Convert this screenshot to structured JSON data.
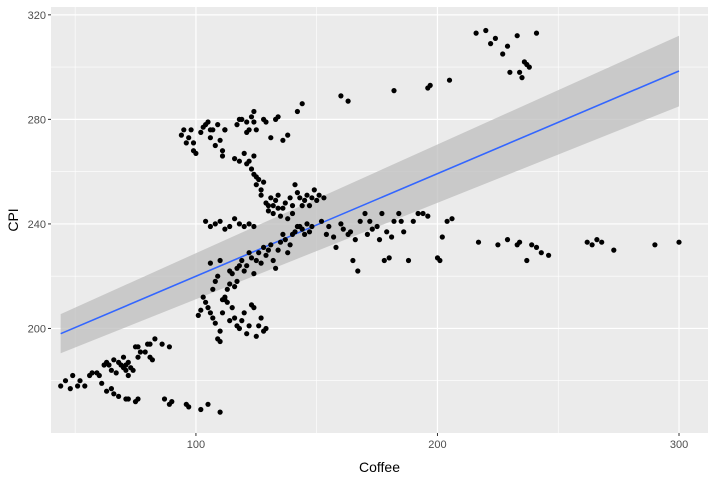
{
  "chart_data": {
    "type": "scatter",
    "title": "",
    "xlabel": "Coffee",
    "ylabel": "CPI",
    "xlim": [
      40,
      312
    ],
    "ylim": [
      160,
      323
    ],
    "x_ticks": [
      100,
      200,
      300
    ],
    "y_ticks": [
      200,
      240,
      280,
      320
    ],
    "x_minor_ticks": [
      50,
      150,
      250
    ],
    "y_minor_ticks": [
      180,
      220,
      260,
      300
    ],
    "grid": true,
    "legend": "none",
    "colors": {
      "panel": "#ebebeb",
      "grid": "#ffffff",
      "point": "#000000",
      "trend": "#3366ff",
      "ribbon": "#bdbdbd"
    },
    "trend": {
      "type": "linear",
      "x": [
        44,
        300
      ],
      "y": [
        198,
        298.5
      ],
      "ci_lower": [
        190.5,
        285
      ],
      "ci_upper": [
        205.5,
        312
      ]
    },
    "points": [
      [
        44,
        178
      ],
      [
        46,
        180
      ],
      [
        48,
        177
      ],
      [
        49,
        182
      ],
      [
        51,
        178
      ],
      [
        52,
        180
      ],
      [
        54,
        178
      ],
      [
        56,
        182
      ],
      [
        57,
        183
      ],
      [
        59,
        183
      ],
      [
        60,
        182
      ],
      [
        61,
        179
      ],
      [
        62,
        186
      ],
      [
        63,
        187
      ],
      [
        64,
        186
      ],
      [
        65,
        184
      ],
      [
        66,
        188
      ],
      [
        67,
        183
      ],
      [
        68,
        187
      ],
      [
        69,
        186
      ],
      [
        70,
        189
      ],
      [
        70,
        185
      ],
      [
        71,
        184
      ],
      [
        71,
        186
      ],
      [
        72,
        187
      ],
      [
        72,
        182
      ],
      [
        73,
        185
      ],
      [
        74,
        184
      ],
      [
        75,
        193
      ],
      [
        76,
        193
      ],
      [
        76,
        189
      ],
      [
        77,
        191
      ],
      [
        79,
        191
      ],
      [
        80,
        194
      ],
      [
        81,
        189
      ],
      [
        81,
        194
      ],
      [
        82,
        188
      ],
      [
        83,
        196
      ],
      [
        86,
        194
      ],
      [
        89,
        193
      ],
      [
        63,
        176
      ],
      [
        65,
        177
      ],
      [
        66,
        175
      ],
      [
        68,
        174
      ],
      [
        71,
        173
      ],
      [
        72,
        173
      ],
      [
        75,
        172
      ],
      [
        76,
        173
      ],
      [
        87,
        173
      ],
      [
        89,
        171
      ],
      [
        90,
        172
      ],
      [
        96,
        171
      ],
      [
        97,
        170
      ],
      [
        102,
        169
      ],
      [
        105,
        171
      ],
      [
        110,
        168
      ],
      [
        94,
        274
      ],
      [
        95,
        276
      ],
      [
        96,
        271
      ],
      [
        97,
        273
      ],
      [
        98,
        276
      ],
      [
        99,
        271
      ],
      [
        99,
        268
      ],
      [
        100,
        267
      ],
      [
        102,
        275
      ],
      [
        103,
        277
      ],
      [
        104,
        278
      ],
      [
        105,
        279
      ],
      [
        106,
        276
      ],
      [
        106,
        273
      ],
      [
        107,
        276
      ],
      [
        108,
        270
      ],
      [
        109,
        278
      ],
      [
        110,
        272
      ],
      [
        111,
        268
      ],
      [
        111,
        266
      ],
      [
        112,
        276
      ],
      [
        112,
        276
      ],
      [
        112,
        276
      ],
      [
        117,
        278
      ],
      [
        118,
        280
      ],
      [
        119,
        280
      ],
      [
        121,
        279
      ],
      [
        121,
        275
      ],
      [
        122,
        276
      ],
      [
        123,
        281
      ],
      [
        124,
        283
      ],
      [
        124,
        279
      ],
      [
        125,
        276
      ],
      [
        128,
        280
      ],
      [
        129,
        279
      ],
      [
        131,
        273
      ],
      [
        133,
        280
      ],
      [
        134,
        281
      ],
      [
        136,
        272
      ],
      [
        138,
        274
      ],
      [
        142,
        283
      ],
      [
        144,
        286
      ],
      [
        116,
        265
      ],
      [
        118,
        264
      ],
      [
        120,
        267
      ],
      [
        121,
        263
      ],
      [
        122,
        264
      ],
      [
        123,
        261
      ],
      [
        124,
        266
      ],
      [
        124,
        259
      ],
      [
        125,
        258
      ],
      [
        125,
        255
      ],
      [
        126,
        257
      ],
      [
        127,
        253
      ],
      [
        127,
        251
      ],
      [
        128,
        256
      ],
      [
        129,
        248
      ],
      [
        130,
        247
      ],
      [
        130,
        245
      ],
      [
        131,
        250
      ],
      [
        132,
        244
      ],
      [
        132,
        247
      ],
      [
        133,
        249
      ],
      [
        134,
        246
      ],
      [
        134,
        251
      ],
      [
        135,
        243
      ],
      [
        136,
        246
      ],
      [
        137,
        248
      ],
      [
        138,
        242
      ],
      [
        139,
        250
      ],
      [
        140,
        244
      ],
      [
        140,
        247
      ],
      [
        141,
        255
      ],
      [
        142,
        252
      ],
      [
        143,
        250
      ],
      [
        144,
        247
      ],
      [
        145,
        249
      ],
      [
        146,
        251
      ],
      [
        147,
        247
      ],
      [
        148,
        250
      ],
      [
        149,
        253
      ],
      [
        150,
        249
      ],
      [
        151,
        251
      ],
      [
        153,
        250
      ],
      [
        106,
        225
      ],
      [
        107,
        215
      ],
      [
        108,
        218
      ],
      [
        109,
        220
      ],
      [
        110,
        226
      ],
      [
        111,
        211
      ],
      [
        112,
        212
      ],
      [
        113,
        215
      ],
      [
        114,
        217
      ],
      [
        114,
        222
      ],
      [
        115,
        221
      ],
      [
        116,
        216
      ],
      [
        117,
        218
      ],
      [
        117,
        223
      ],
      [
        118,
        224
      ],
      [
        119,
        226
      ],
      [
        120,
        222
      ],
      [
        121,
        224
      ],
      [
        122,
        229
      ],
      [
        123,
        227
      ],
      [
        124,
        221
      ],
      [
        125,
        226
      ],
      [
        126,
        229
      ],
      [
        127,
        225
      ],
      [
        128,
        231
      ],
      [
        129,
        228
      ],
      [
        130,
        230
      ],
      [
        131,
        232
      ],
      [
        132,
        226
      ],
      [
        133,
        223
      ],
      [
        134,
        230
      ],
      [
        135,
        233
      ],
      [
        136,
        236
      ],
      [
        137,
        234
      ],
      [
        138,
        229
      ],
      [
        139,
        232
      ],
      [
        140,
        236
      ],
      [
        141,
        237
      ],
      [
        142,
        239
      ],
      [
        143,
        239
      ],
      [
        144,
        238
      ],
      [
        145,
        236
      ],
      [
        146,
        240
      ],
      [
        147,
        237
      ],
      [
        148,
        239
      ],
      [
        101,
        205
      ],
      [
        102,
        207
      ],
      [
        103,
        212
      ],
      [
        104,
        210
      ],
      [
        105,
        208
      ],
      [
        106,
        206
      ],
      [
        107,
        204
      ],
      [
        108,
        202
      ],
      [
        109,
        196
      ],
      [
        110,
        199
      ],
      [
        110,
        195
      ],
      [
        111,
        206
      ],
      [
        112,
        211
      ],
      [
        113,
        210
      ],
      [
        114,
        203
      ],
      [
        115,
        208
      ],
      [
        116,
        204
      ],
      [
        117,
        201
      ],
      [
        118,
        200
      ],
      [
        119,
        203
      ],
      [
        120,
        206
      ],
      [
        121,
        198
      ],
      [
        122,
        201
      ],
      [
        123,
        209
      ],
      [
        124,
        208
      ],
      [
        125,
        197
      ],
      [
        126,
        201
      ],
      [
        127,
        204
      ],
      [
        128,
        199
      ],
      [
        129,
        200
      ],
      [
        104,
        241
      ],
      [
        106,
        239
      ],
      [
        108,
        240
      ],
      [
        110,
        241
      ],
      [
        112,
        238
      ],
      [
        114,
        239
      ],
      [
        116,
        242
      ],
      [
        118,
        240
      ],
      [
        120,
        239
      ],
      [
        122,
        240
      ],
      [
        124,
        239
      ],
      [
        152,
        241
      ],
      [
        154,
        236
      ],
      [
        155,
        239
      ],
      [
        157,
        235
      ],
      [
        158,
        231
      ],
      [
        160,
        240
      ],
      [
        161,
        238
      ],
      [
        163,
        236
      ],
      [
        164,
        237
      ],
      [
        165,
        226
      ],
      [
        166,
        234
      ],
      [
        167,
        222
      ],
      [
        168,
        241
      ],
      [
        170,
        244
      ],
      [
        171,
        236
      ],
      [
        172,
        241
      ],
      [
        173,
        238
      ],
      [
        175,
        239
      ],
      [
        176,
        234
      ],
      [
        177,
        244
      ],
      [
        178,
        226
      ],
      [
        179,
        237
      ],
      [
        180,
        227
      ],
      [
        181,
        235
      ],
      [
        182,
        241
      ],
      [
        184,
        244
      ],
      [
        185,
        241
      ],
      [
        186,
        237
      ],
      [
        188,
        226
      ],
      [
        190,
        241
      ],
      [
        192,
        244
      ],
      [
        194,
        244
      ],
      [
        196,
        243
      ],
      [
        200,
        227
      ],
      [
        201,
        226
      ],
      [
        202,
        235
      ],
      [
        204,
        241
      ],
      [
        206,
        242
      ],
      [
        160,
        289
      ],
      [
        163,
        287
      ],
      [
        182,
        291
      ],
      [
        196,
        292
      ],
      [
        197,
        293
      ],
      [
        205,
        295
      ],
      [
        217,
        233
      ],
      [
        225,
        232
      ],
      [
        229,
        234
      ],
      [
        233,
        232
      ],
      [
        234,
        233
      ],
      [
        237,
        226
      ],
      [
        239,
        232
      ],
      [
        241,
        231
      ],
      [
        243,
        229
      ],
      [
        246,
        228
      ],
      [
        262,
        233
      ],
      [
        264,
        232
      ],
      [
        266,
        234
      ],
      [
        268,
        233
      ],
      [
        273,
        230
      ],
      [
        290,
        232
      ],
      [
        300,
        233
      ],
      [
        216,
        313
      ],
      [
        220,
        314
      ],
      [
        222,
        309
      ],
      [
        224,
        311
      ],
      [
        227,
        305
      ],
      [
        229,
        308
      ],
      [
        230,
        298
      ],
      [
        233,
        312
      ],
      [
        234,
        298
      ],
      [
        235,
        296
      ],
      [
        236,
        302
      ],
      [
        237,
        301
      ],
      [
        238,
        300
      ],
      [
        241,
        313
      ]
    ]
  }
}
